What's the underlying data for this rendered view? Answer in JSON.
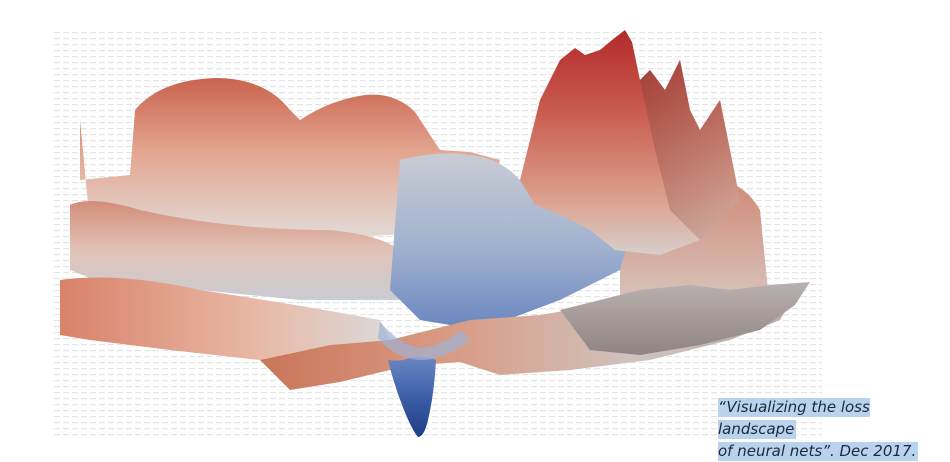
{
  "figure": {
    "caption_line1": "“Visualizing the loss landscape",
    "caption_line2": "of neural nets”. Dec 2017.",
    "colors": {
      "high": "#b8332f",
      "mid": "#d9d4d0",
      "low": "#2b4f9b",
      "grid": "#e6e6e6",
      "caption_highlight": "#b9d3ef"
    }
  }
}
